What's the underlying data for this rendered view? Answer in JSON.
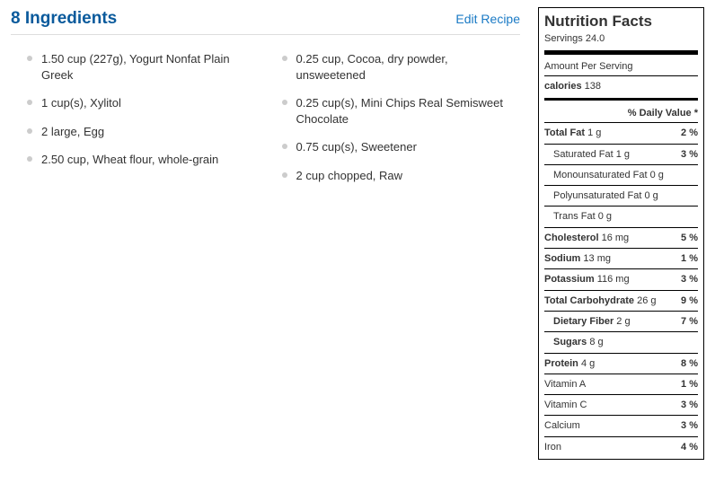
{
  "header": {
    "title": "8 Ingredients",
    "edit_label": "Edit Recipe"
  },
  "ingredients": {
    "col1": [
      "1.50 cup (227g), Yogurt Nonfat Plain Greek",
      "1 cup(s), Xylitol",
      "2 large, Egg",
      "2.50 cup, Wheat flour, whole-grain"
    ],
    "col2": [
      "0.25 cup, Cocoa, dry powder, unsweetened",
      "0.25 cup(s), Mini Chips Real Semisweet Chocolate",
      "0.75 cup(s), Sweetener",
      "2 cup chopped, Raw"
    ]
  },
  "nutrition": {
    "title": "Nutrition Facts",
    "servings": "Servings 24.0",
    "amount_per": "Amount Per Serving",
    "calories_label": "calories",
    "calories_value": "138",
    "dv_header": "% Daily Value *",
    "rows": [
      {
        "label": "Total Fat",
        "amt": "1 g",
        "dv": "2 %",
        "bold": true
      },
      {
        "label": "Saturated Fat",
        "amt": "1 g",
        "dv": "3 %",
        "indent": true
      },
      {
        "label": "Monounsaturated Fat",
        "amt": "0 g",
        "dv": "",
        "indent": true
      },
      {
        "label": "Polyunsaturated Fat",
        "amt": "0 g",
        "dv": "",
        "indent": true
      },
      {
        "label": "Trans Fat",
        "amt": "0 g",
        "dv": "",
        "indent": true
      },
      {
        "label": "Cholesterol",
        "amt": "16 mg",
        "dv": "5 %",
        "bold": true
      },
      {
        "label": "Sodium",
        "amt": "13 mg",
        "dv": "1 %",
        "bold": true
      },
      {
        "label": "Potassium",
        "amt": "116 mg",
        "dv": "3 %",
        "bold": true
      },
      {
        "label": "Total Carbohydrate",
        "amt": "26 g",
        "dv": "9 %",
        "bold": true
      },
      {
        "label": "Dietary Fiber",
        "amt": "2 g",
        "dv": "7 %",
        "indent": true,
        "bold": true
      },
      {
        "label": "Sugars",
        "amt": "8 g",
        "dv": "",
        "indent": true,
        "bold": true
      },
      {
        "label": "Protein",
        "amt": "4 g",
        "dv": "8 %",
        "bold": true
      },
      {
        "label": "Vitamin A",
        "amt": "",
        "dv": "1 %"
      },
      {
        "label": "Vitamin C",
        "amt": "",
        "dv": "3 %"
      },
      {
        "label": "Calcium",
        "amt": "",
        "dv": "3 %"
      },
      {
        "label": "Iron",
        "amt": "",
        "dv": "4 %"
      }
    ]
  }
}
